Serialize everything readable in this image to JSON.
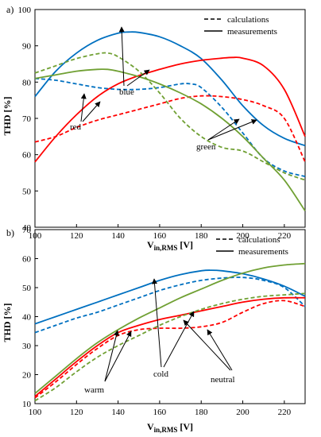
{
  "chart_data": [
    {
      "panel_label": "a)",
      "type": "line",
      "xlabel_main": "V",
      "xlabel_sub": "in,RMS",
      "xlabel_unit": " [V]",
      "ylabel": "THD [%]",
      "xlim": [
        100,
        230
      ],
      "ylim": [
        40,
        100
      ],
      "xticks": [
        100,
        120,
        140,
        160,
        180,
        200,
        220
      ],
      "yticks": [
        40,
        50,
        60,
        70,
        80,
        90,
        100
      ],
      "grid": false,
      "legend_position": "top-right",
      "legend": [
        {
          "label": "calculations",
          "style": "dashed"
        },
        {
          "label": "measurements",
          "style": "solid"
        }
      ],
      "series": [
        {
          "group": "blue",
          "style": "solid",
          "color": "#0070c0",
          "x": [
            100,
            110,
            120,
            130,
            140,
            145,
            150,
            160,
            170,
            180,
            190,
            200,
            210,
            220,
            230
          ],
          "y": [
            76,
            83,
            88,
            91.5,
            93.5,
            93.8,
            93.7,
            92.5,
            90,
            86.5,
            80.5,
            73.5,
            68,
            64.5,
            62.5
          ]
        },
        {
          "group": "blue",
          "style": "dashed",
          "color": "#0070c0",
          "x": [
            100,
            110,
            120,
            130,
            140,
            150,
            160,
            170,
            175,
            180,
            190,
            200,
            210,
            220,
            230
          ],
          "y": [
            81,
            80.5,
            79.5,
            78.5,
            78,
            78,
            78.5,
            79.5,
            79.5,
            78.5,
            73,
            66,
            59,
            55.5,
            54
          ]
        },
        {
          "group": "red",
          "style": "solid",
          "color": "#ff0000",
          "x": [
            100,
            110,
            120,
            130,
            140,
            150,
            160,
            170,
            180,
            190,
            195,
            200,
            210,
            220,
            230
          ],
          "y": [
            58,
            65,
            71,
            76,
            79.5,
            81.8,
            83.5,
            85,
            86,
            86.6,
            86.8,
            86.6,
            84.5,
            78,
            65
          ]
        },
        {
          "group": "red",
          "style": "dashed",
          "color": "#ff0000",
          "x": [
            100,
            110,
            120,
            130,
            140,
            150,
            160,
            170,
            180,
            190,
            200,
            210,
            220,
            230
          ],
          "y": [
            63.5,
            65,
            67.5,
            69.5,
            71,
            72.5,
            74,
            75.5,
            76.2,
            76,
            75.2,
            73.5,
            70,
            58
          ]
        },
        {
          "group": "green",
          "style": "solid",
          "color": "#70a033",
          "x": [
            100,
            110,
            120,
            130,
            135,
            140,
            150,
            160,
            170,
            180,
            190,
            200,
            210,
            220,
            230
          ],
          "y": [
            81,
            82,
            83,
            83.5,
            83.5,
            83,
            81.5,
            79.5,
            77,
            74,
            70,
            65,
            59,
            53,
            44.5
          ]
        },
        {
          "group": "green",
          "style": "dashed",
          "color": "#70a033",
          "x": [
            100,
            110,
            120,
            130,
            135,
            140,
            150,
            160,
            170,
            180,
            190,
            200,
            210,
            220,
            230
          ],
          "y": [
            82.5,
            84.5,
            86.5,
            87.8,
            88,
            87,
            83,
            77,
            70,
            65,
            62,
            61,
            58,
            55,
            53
          ]
        }
      ],
      "annotations": [
        {
          "text": "red"
        },
        {
          "text": "blue"
        },
        {
          "text": "green"
        }
      ]
    },
    {
      "panel_label": "b)",
      "type": "line",
      "xlabel_main": "V",
      "xlabel_sub": "in,RMS",
      "xlabel_unit": " [V]",
      "ylabel": "THD [%]",
      "xlim": [
        100,
        230
      ],
      "ylim": [
        10,
        70
      ],
      "xticks": [
        100,
        120,
        140,
        160,
        180,
        200,
        220
      ],
      "yticks": [
        10,
        20,
        30,
        40,
        50,
        60,
        70
      ],
      "grid": false,
      "legend_position": "top-right",
      "legend": [
        {
          "label": "calculations",
          "style": "dashed"
        },
        {
          "label": "measurements",
          "style": "solid"
        }
      ],
      "series": [
        {
          "group": "cold",
          "style": "solid",
          "color": "#0070c0",
          "x": [
            100,
            110,
            120,
            130,
            140,
            150,
            160,
            170,
            180,
            185,
            190,
            200,
            210,
            220,
            230
          ],
          "y": [
            37.5,
            40,
            42.5,
            45,
            47.5,
            50,
            52.5,
            54.5,
            55.8,
            56,
            55.8,
            54.8,
            53,
            50.5,
            47
          ]
        },
        {
          "group": "cold",
          "style": "dashed",
          "color": "#0070c0",
          "x": [
            100,
            110,
            120,
            130,
            140,
            150,
            160,
            170,
            180,
            190,
            200,
            210,
            220,
            230
          ],
          "y": [
            34.5,
            37,
            39.5,
            41.5,
            44,
            46.5,
            49,
            51,
            52.5,
            53.3,
            53.5,
            52.5,
            50,
            43.5
          ]
        },
        {
          "group": "neutral",
          "style": "solid",
          "color": "#ff0000",
          "x": [
            100,
            110,
            120,
            130,
            140,
            150,
            160,
            170,
            180,
            190,
            200,
            210,
            220,
            230
          ],
          "y": [
            12.5,
            18.5,
            24.5,
            30,
            34.5,
            37,
            39,
            40.5,
            42,
            43.5,
            45,
            46,
            46.5,
            46.5
          ]
        },
        {
          "group": "neutral",
          "style": "dashed",
          "color": "#ff0000",
          "x": [
            100,
            110,
            120,
            130,
            140,
            150,
            160,
            170,
            180,
            190,
            200,
            210,
            220,
            230
          ],
          "y": [
            12,
            17.5,
            23.5,
            29,
            33.5,
            35.5,
            36,
            36,
            36.5,
            38,
            41.5,
            44.5,
            45.5,
            43.5
          ]
        },
        {
          "group": "warm",
          "style": "solid",
          "color": "#70a033",
          "x": [
            100,
            110,
            120,
            130,
            140,
            150,
            160,
            170,
            180,
            190,
            200,
            210,
            220,
            230
          ],
          "y": [
            13.5,
            19.5,
            25.5,
            31,
            35.5,
            39.5,
            43,
            46.5,
            49.5,
            52.5,
            55,
            56.8,
            57.8,
            58.3
          ]
        },
        {
          "group": "warm",
          "style": "dashed",
          "color": "#70a033",
          "x": [
            100,
            110,
            120,
            130,
            140,
            150,
            160,
            170,
            180,
            190,
            200,
            210,
            220,
            230
          ],
          "y": [
            11,
            15.5,
            21,
            26,
            30,
            33.5,
            37,
            40,
            42.5,
            44.5,
            46,
            47,
            47.5,
            48
          ]
        }
      ],
      "annotations": [
        {
          "text": "cold"
        },
        {
          "text": "warm"
        },
        {
          "text": "neutral"
        }
      ]
    }
  ]
}
